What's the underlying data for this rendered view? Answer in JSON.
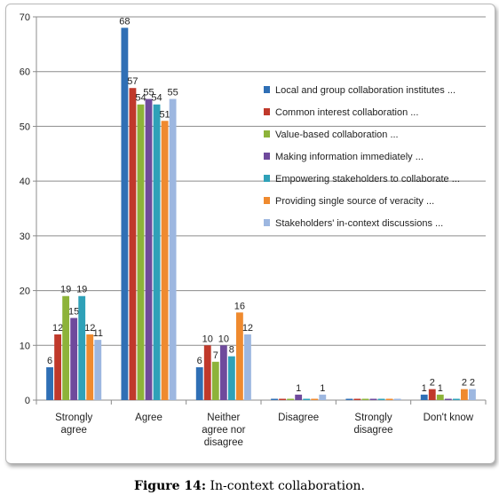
{
  "chart_data": {
    "type": "bar",
    "ylim": [
      0,
      70
    ],
    "yticks": [
      0,
      10,
      20,
      30,
      40,
      50,
      60,
      70
    ],
    "grid": "horizontal",
    "legend_position": "right",
    "categories": [
      "Strongly\nagree",
      "Agree",
      "Neither\nagree nor\ndisagree",
      "Disagree",
      "Strongly\ndisagree",
      "Don't know"
    ],
    "series": [
      {
        "name": "Local and group collaboration institutes ...",
        "color": "#2f6fb5",
        "values": [
          6,
          68,
          6,
          0,
          0,
          1
        ]
      },
      {
        "name": "Common interest collaboration ...",
        "color": "#c0392b",
        "values": [
          12,
          57,
          10,
          0,
          0,
          2
        ]
      },
      {
        "name": "Value-based collaboration ...",
        "color": "#8db33a",
        "values": [
          19,
          54,
          7,
          0,
          0,
          1
        ]
      },
      {
        "name": "Making information immediately ...",
        "color": "#6f4a9c",
        "values": [
          15,
          55,
          10,
          1,
          0,
          0
        ]
      },
      {
        "name": "Empowering stakeholders to collaborate ...",
        "color": "#2fa1b8",
        "values": [
          19,
          54,
          8,
          0,
          0,
          0
        ]
      },
      {
        "name": "Providing single source of veracity ...",
        "color": "#ef8a2f",
        "values": [
          12,
          51,
          16,
          0,
          0,
          2
        ]
      },
      {
        "name": "Stakeholders' in-context discussions ...",
        "color": "#9db7e0",
        "values": [
          11,
          55,
          12,
          1,
          0,
          2
        ]
      }
    ],
    "data_labels": [
      [
        "6",
        "68",
        "6",
        "",
        "",
        "1"
      ],
      [
        "12",
        "57",
        "10",
        "",
        "",
        "2"
      ],
      [
        "19",
        "54",
        "7",
        "",
        "",
        "1"
      ],
      [
        "15",
        "55",
        "10",
        "1",
        "",
        ""
      ],
      [
        "19",
        "54",
        "8",
        "",
        "",
        ""
      ],
      [
        "12",
        "51",
        "16",
        "",
        "",
        "2"
      ],
      [
        "11",
        "55",
        "12",
        "1",
        "",
        "2"
      ]
    ]
  },
  "caption": {
    "label": "Figure 14:",
    "text": " In-context collaboration."
  }
}
